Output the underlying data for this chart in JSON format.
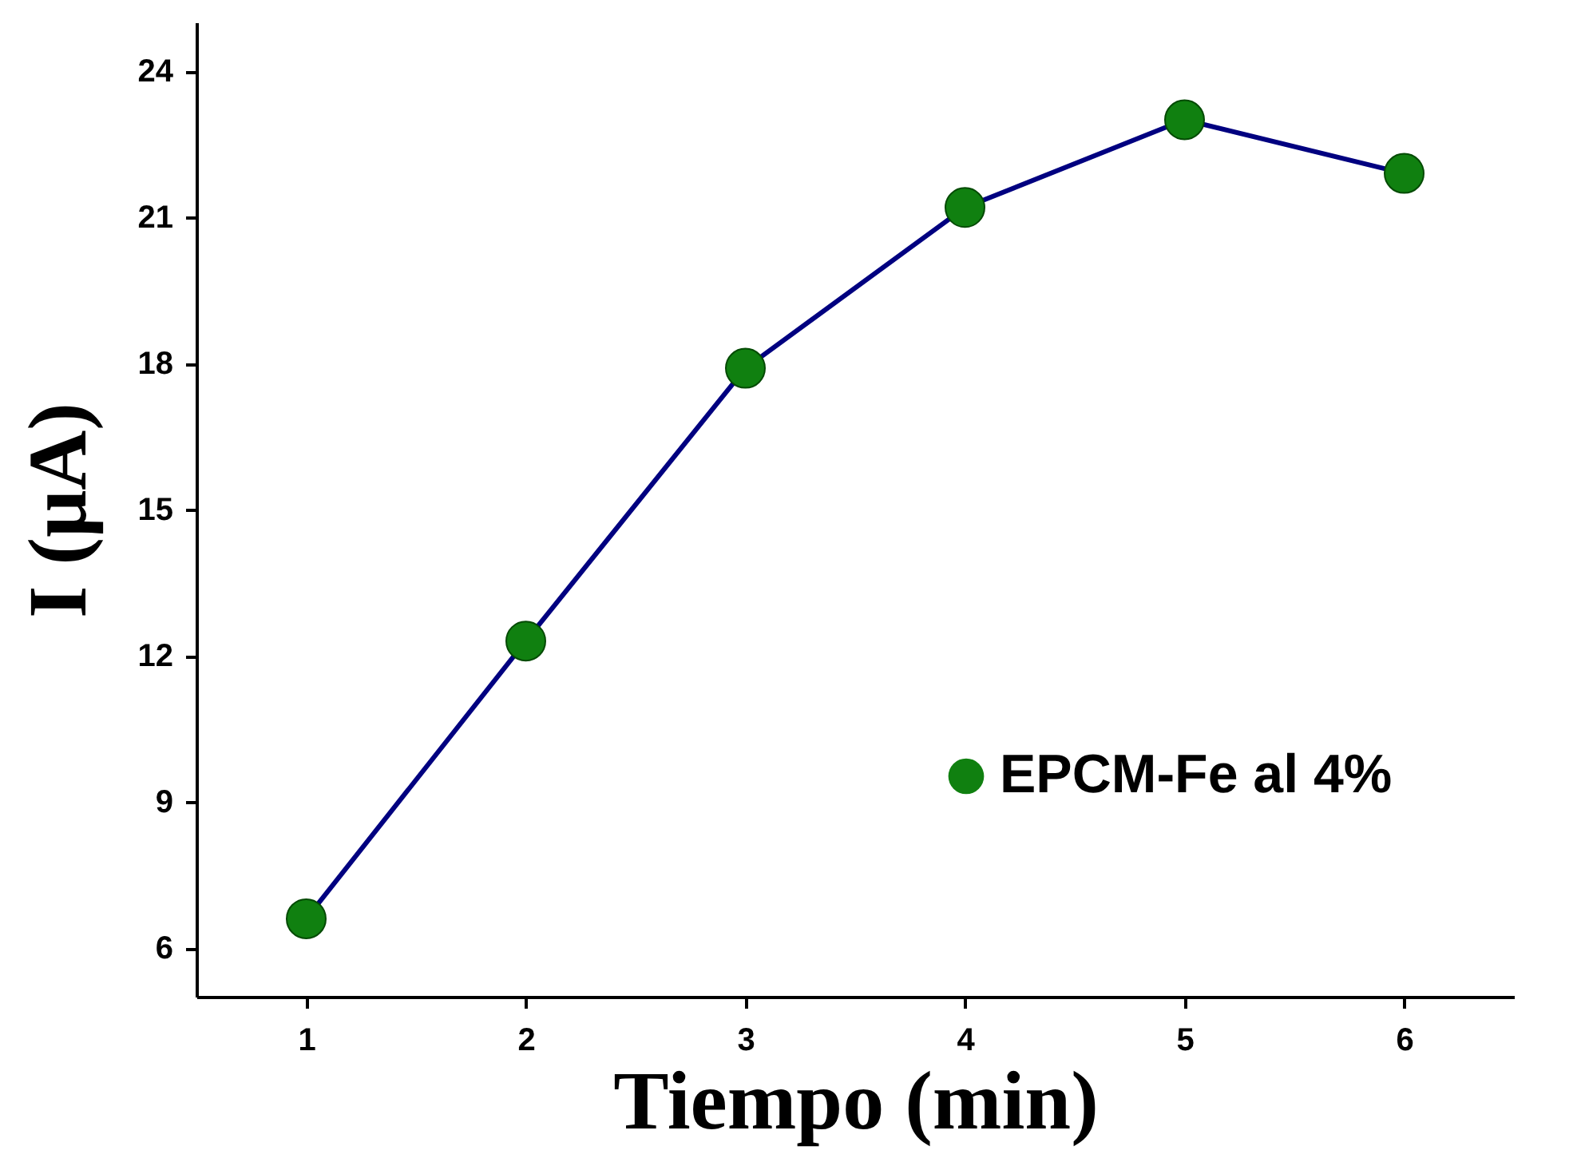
{
  "chart_data": {
    "type": "line",
    "xlabel": "Tiempo (min)",
    "ylabel": "I (μA)",
    "x": [
      1,
      2,
      3,
      4,
      5,
      6
    ],
    "series": [
      {
        "name": "EPCM-Fe al 4%",
        "color": "#108010",
        "values": [
          6.6,
          12.3,
          17.9,
          21.2,
          23.0,
          21.9
        ]
      }
    ],
    "xlim": [
      0.5,
      6.5
    ],
    "xticks": [
      1,
      2,
      3,
      4,
      5,
      6
    ],
    "ylim": [
      5,
      25
    ],
    "yticks": [
      6,
      9,
      12,
      15,
      18,
      21,
      24
    ],
    "grid": false,
    "legend": "bottom right",
    "marker": "circle",
    "line_style": "solid"
  }
}
